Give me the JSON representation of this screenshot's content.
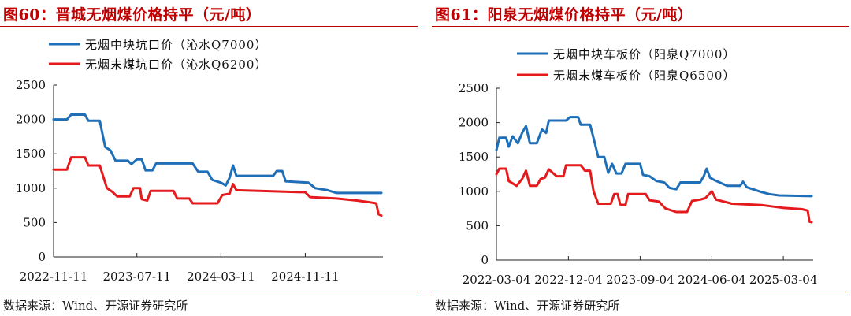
{
  "charts": [
    {
      "title": "图60：晋城无烟煤价格持平（元/吨）",
      "source": "数据来源：Wind、开源证券研究所"
    },
    {
      "title": "图61：阳泉无烟煤价格持平（元/吨）",
      "source": "数据来源：Wind、开源证券研究所"
    }
  ],
  "chart_data": [
    {
      "type": "line",
      "title": "图60：晋城无烟煤价格持平（元/吨）",
      "xlabel": "",
      "ylabel": "",
      "ylim": [
        0,
        2500
      ],
      "yticks": [
        "0",
        "500",
        "1000",
        "1500",
        "2000",
        "2500"
      ],
      "xticks": [
        "2022-11-11",
        "2023-07-11",
        "2024-03-11",
        "2024-11-11"
      ],
      "xrange": [
        "2022-11-11",
        "2025-06-20"
      ],
      "grid": false,
      "legend": "top-left",
      "series": [
        {
          "name": "无烟中块坑口价（沁水Q7000）",
          "color": "#1f6fb8",
          "points": [
            [
              "2022-11-11",
              2000
            ],
            [
              "2022-12-20",
              2000
            ],
            [
              "2023-01-01",
              2070
            ],
            [
              "2023-02-10",
              2070
            ],
            [
              "2023-02-20",
              1980
            ],
            [
              "2023-03-25",
              1980
            ],
            [
              "2023-04-10",
              1600
            ],
            [
              "2023-04-25",
              1550
            ],
            [
              "2023-05-10",
              1400
            ],
            [
              "2023-06-15",
              1400
            ],
            [
              "2023-06-25",
              1350
            ],
            [
              "2023-07-11",
              1420
            ],
            [
              "2023-07-25",
              1420
            ],
            [
              "2023-08-05",
              1260
            ],
            [
              "2023-08-25",
              1260
            ],
            [
              "2023-09-05",
              1360
            ],
            [
              "2023-12-20",
              1360
            ],
            [
              "2024-01-05",
              1240
            ],
            [
              "2024-02-01",
              1240
            ],
            [
              "2024-02-15",
              1120
            ],
            [
              "2024-03-11",
              1080
            ],
            [
              "2024-03-25",
              1040
            ],
            [
              "2024-04-05",
              1150
            ],
            [
              "2024-04-15",
              1330
            ],
            [
              "2024-04-25",
              1180
            ],
            [
              "2024-08-10",
              1180
            ],
            [
              "2024-08-20",
              1250
            ],
            [
              "2024-09-05",
              1250
            ],
            [
              "2024-09-15",
              1100
            ],
            [
              "2024-11-20",
              1080
            ],
            [
              "2024-12-10",
              1000
            ],
            [
              "2025-01-15",
              970
            ],
            [
              "2025-02-10",
              930
            ],
            [
              "2025-06-20",
              930
            ]
          ]
        },
        {
          "name": "无烟末煤坑口价（沁水Q6200）",
          "color": "#e41a1c",
          "points": [
            [
              "2022-11-11",
              1270
            ],
            [
              "2022-12-20",
              1270
            ],
            [
              "2023-01-01",
              1450
            ],
            [
              "2023-02-10",
              1450
            ],
            [
              "2023-02-20",
              1330
            ],
            [
              "2023-03-25",
              1330
            ],
            [
              "2023-04-15",
              1000
            ],
            [
              "2023-04-30",
              950
            ],
            [
              "2023-05-15",
              880
            ],
            [
              "2023-06-20",
              880
            ],
            [
              "2023-07-01",
              1000
            ],
            [
              "2023-07-20",
              1000
            ],
            [
              "2023-07-25",
              840
            ],
            [
              "2023-08-10",
              820
            ],
            [
              "2023-08-20",
              960
            ],
            [
              "2023-10-25",
              960
            ],
            [
              "2023-11-05",
              850
            ],
            [
              "2023-12-10",
              850
            ],
            [
              "2023-12-20",
              780
            ],
            [
              "2024-03-01",
              780
            ],
            [
              "2024-03-15",
              900
            ],
            [
              "2024-04-05",
              920
            ],
            [
              "2024-04-15",
              1060
            ],
            [
              "2024-04-25",
              970
            ],
            [
              "2024-11-11",
              940
            ],
            [
              "2024-11-25",
              870
            ],
            [
              "2025-02-10",
              850
            ],
            [
              "2025-04-10",
              820
            ],
            [
              "2025-05-10",
              800
            ],
            [
              "2025-06-05",
              780
            ],
            [
              "2025-06-12",
              620
            ],
            [
              "2025-06-20",
              600
            ]
          ]
        }
      ]
    },
    {
      "type": "line",
      "title": "图61：阳泉无烟煤价格持平（元/吨）",
      "xlabel": "",
      "ylabel": "",
      "ylim": [
        0,
        2500
      ],
      "yticks": [
        "0",
        "500",
        "1000",
        "1500",
        "2000",
        "2500"
      ],
      "xticks": [
        "2022-03-04",
        "2022-12-04",
        "2023-09-04",
        "2024-06-04",
        "2025-03-04"
      ],
      "xrange": [
        "2022-03-04",
        "2025-06-20"
      ],
      "grid": false,
      "legend": "top-left",
      "series": [
        {
          "name": "无烟中块车板价（阳泉Q7000）",
          "color": "#1f6fb8",
          "points": [
            [
              "2022-03-04",
              1600
            ],
            [
              "2022-03-15",
              1780
            ],
            [
              "2022-04-10",
              1780
            ],
            [
              "2022-04-20",
              1650
            ],
            [
              "2022-05-05",
              1800
            ],
            [
              "2022-05-25",
              1700
            ],
            [
              "2022-06-10",
              1850
            ],
            [
              "2022-06-25",
              1950
            ],
            [
              "2022-07-10",
              1700
            ],
            [
              "2022-08-05",
              1700
            ],
            [
              "2022-08-25",
              1900
            ],
            [
              "2022-09-10",
              1850
            ],
            [
              "2022-09-20",
              2030
            ],
            [
              "2022-11-25",
              2030
            ],
            [
              "2022-12-10",
              2080
            ],
            [
              "2023-01-10",
              2080
            ],
            [
              "2023-01-20",
              1970
            ],
            [
              "2023-02-25",
              1970
            ],
            [
              "2023-03-15",
              1700
            ],
            [
              "2023-03-28",
              1500
            ],
            [
              "2023-04-20",
              1500
            ],
            [
              "2023-05-05",
              1270
            ],
            [
              "2023-05-20",
              1400
            ],
            [
              "2023-06-05",
              1260
            ],
            [
              "2023-06-25",
              1260
            ],
            [
              "2023-07-10",
              1400
            ],
            [
              "2023-09-04",
              1400
            ],
            [
              "2023-09-15",
              1240
            ],
            [
              "2023-10-10",
              1220
            ],
            [
              "2023-11-05",
              1150
            ],
            [
              "2023-12-05",
              1130
            ],
            [
              "2023-12-25",
              1050
            ],
            [
              "2024-01-20",
              1030
            ],
            [
              "2024-02-05",
              1130
            ],
            [
              "2024-04-20",
              1130
            ],
            [
              "2024-05-05",
              1230
            ],
            [
              "2024-05-15",
              1330
            ],
            [
              "2024-05-28",
              1200
            ],
            [
              "2024-06-15",
              1160
            ],
            [
              "2024-08-01",
              1080
            ],
            [
              "2024-09-20",
              1080
            ],
            [
              "2024-10-01",
              1140
            ],
            [
              "2024-10-15",
              1060
            ],
            [
              "2024-12-10",
              990
            ],
            [
              "2025-01-10",
              960
            ],
            [
              "2025-02-15",
              940
            ],
            [
              "2025-06-20",
              930
            ]
          ]
        },
        {
          "name": "无烟末煤车板价（阳泉Q6500）",
          "color": "#e41a1c",
          "points": [
            [
              "2022-03-04",
              1250
            ],
            [
              "2022-03-15",
              1330
            ],
            [
              "2022-04-10",
              1330
            ],
            [
              "2022-04-20",
              1150
            ],
            [
              "2022-05-20",
              1080
            ],
            [
              "2022-06-10",
              1180
            ],
            [
              "2022-06-25",
              1300
            ],
            [
              "2022-07-10",
              1080
            ],
            [
              "2022-08-05",
              1080
            ],
            [
              "2022-08-20",
              1180
            ],
            [
              "2022-09-05",
              1200
            ],
            [
              "2022-09-20",
              1320
            ],
            [
              "2022-10-20",
              1220
            ],
            [
              "2022-11-15",
              1220
            ],
            [
              "2022-11-25",
              1380
            ],
            [
              "2023-01-20",
              1380
            ],
            [
              "2023-02-05",
              1300
            ],
            [
              "2023-02-25",
              1300
            ],
            [
              "2023-03-10",
              1000
            ],
            [
              "2023-03-28",
              820
            ],
            [
              "2023-05-15",
              820
            ],
            [
              "2023-05-28",
              960
            ],
            [
              "2023-06-10",
              960
            ],
            [
              "2023-06-20",
              810
            ],
            [
              "2023-07-10",
              800
            ],
            [
              "2023-07-20",
              960
            ],
            [
              "2023-09-25",
              960
            ],
            [
              "2023-10-10",
              870
            ],
            [
              "2023-11-15",
              850
            ],
            [
              "2023-12-10",
              750
            ],
            [
              "2024-01-20",
              700
            ],
            [
              "2024-03-01",
              700
            ],
            [
              "2024-03-20",
              860
            ],
            [
              "2024-04-20",
              880
            ],
            [
              "2024-05-10",
              900
            ],
            [
              "2024-06-04",
              1000
            ],
            [
              "2024-06-20",
              880
            ],
            [
              "2024-08-20",
              820
            ],
            [
              "2024-12-10",
              800
            ],
            [
              "2025-03-01",
              760
            ],
            [
              "2025-05-15",
              740
            ],
            [
              "2025-06-05",
              720
            ],
            [
              "2025-06-12",
              560
            ],
            [
              "2025-06-20",
              550
            ]
          ]
        }
      ]
    }
  ]
}
